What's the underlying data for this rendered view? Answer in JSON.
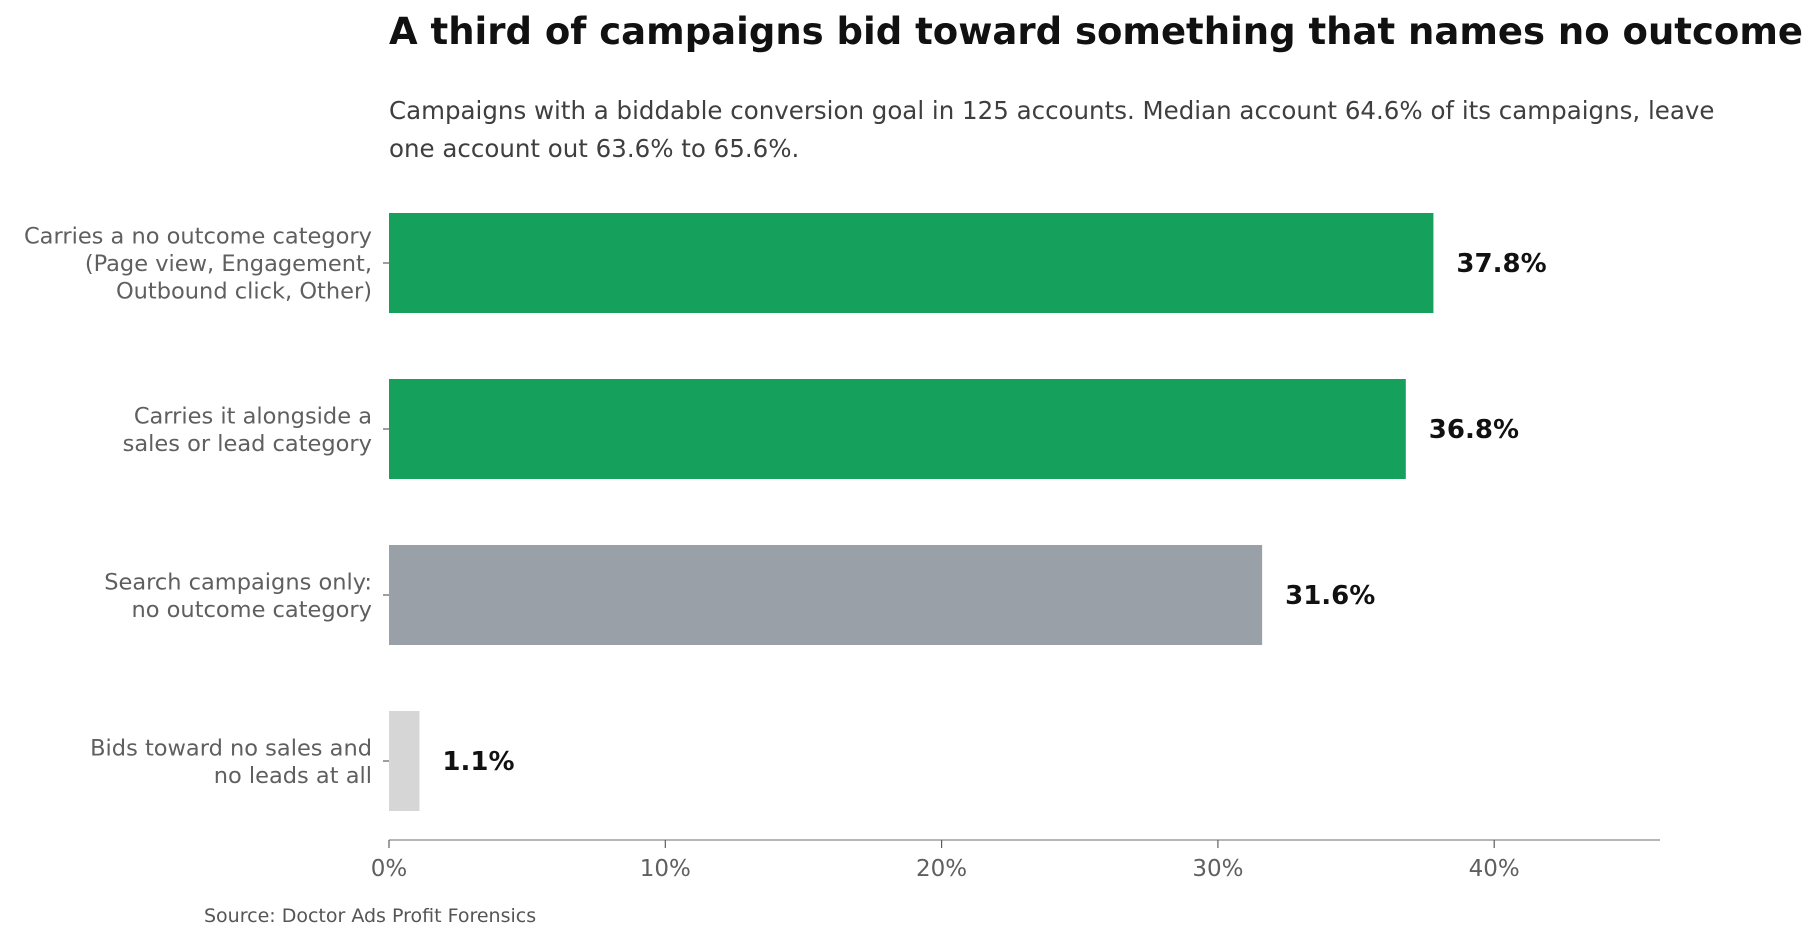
{
  "chart_data": {
    "type": "bar",
    "orientation": "horizontal",
    "title": "A third of campaigns bid toward something that names no outcome",
    "subtitle_lines": [
      "Campaigns with a biddable conversion goal in 125 accounts. Median account 64.6% of its campaigns, leave",
      "one account out 63.6% to 65.6%."
    ],
    "categories": [
      [
        "Carries a no outcome category",
        "(Page view, Engagement,",
        "Outbound click, Other)"
      ],
      [
        "Carries it alongside a",
        "sales or lead category"
      ],
      [
        "Search campaigns only:",
        "no outcome category"
      ],
      [
        "Bids toward no sales and",
        "no leads at all"
      ]
    ],
    "values": [
      37.8,
      36.8,
      31.6,
      1.1
    ],
    "value_labels": [
      "37.8%",
      "36.8%",
      "31.6%",
      "1.1%"
    ],
    "colors": [
      "#15a15c",
      "#15a15c",
      "#9aa0a8",
      "#d6d6d6"
    ],
    "xlim": [
      0,
      46
    ],
    "xticks": [
      0,
      10,
      20,
      30,
      40
    ],
    "xtick_labels": [
      "0%",
      "10%",
      "20%",
      "30%",
      "40%"
    ],
    "xlabel": "",
    "ylabel": "",
    "grid": false,
    "legend": "none",
    "source": "Source: Doctor Ads Profit Forensics"
  }
}
